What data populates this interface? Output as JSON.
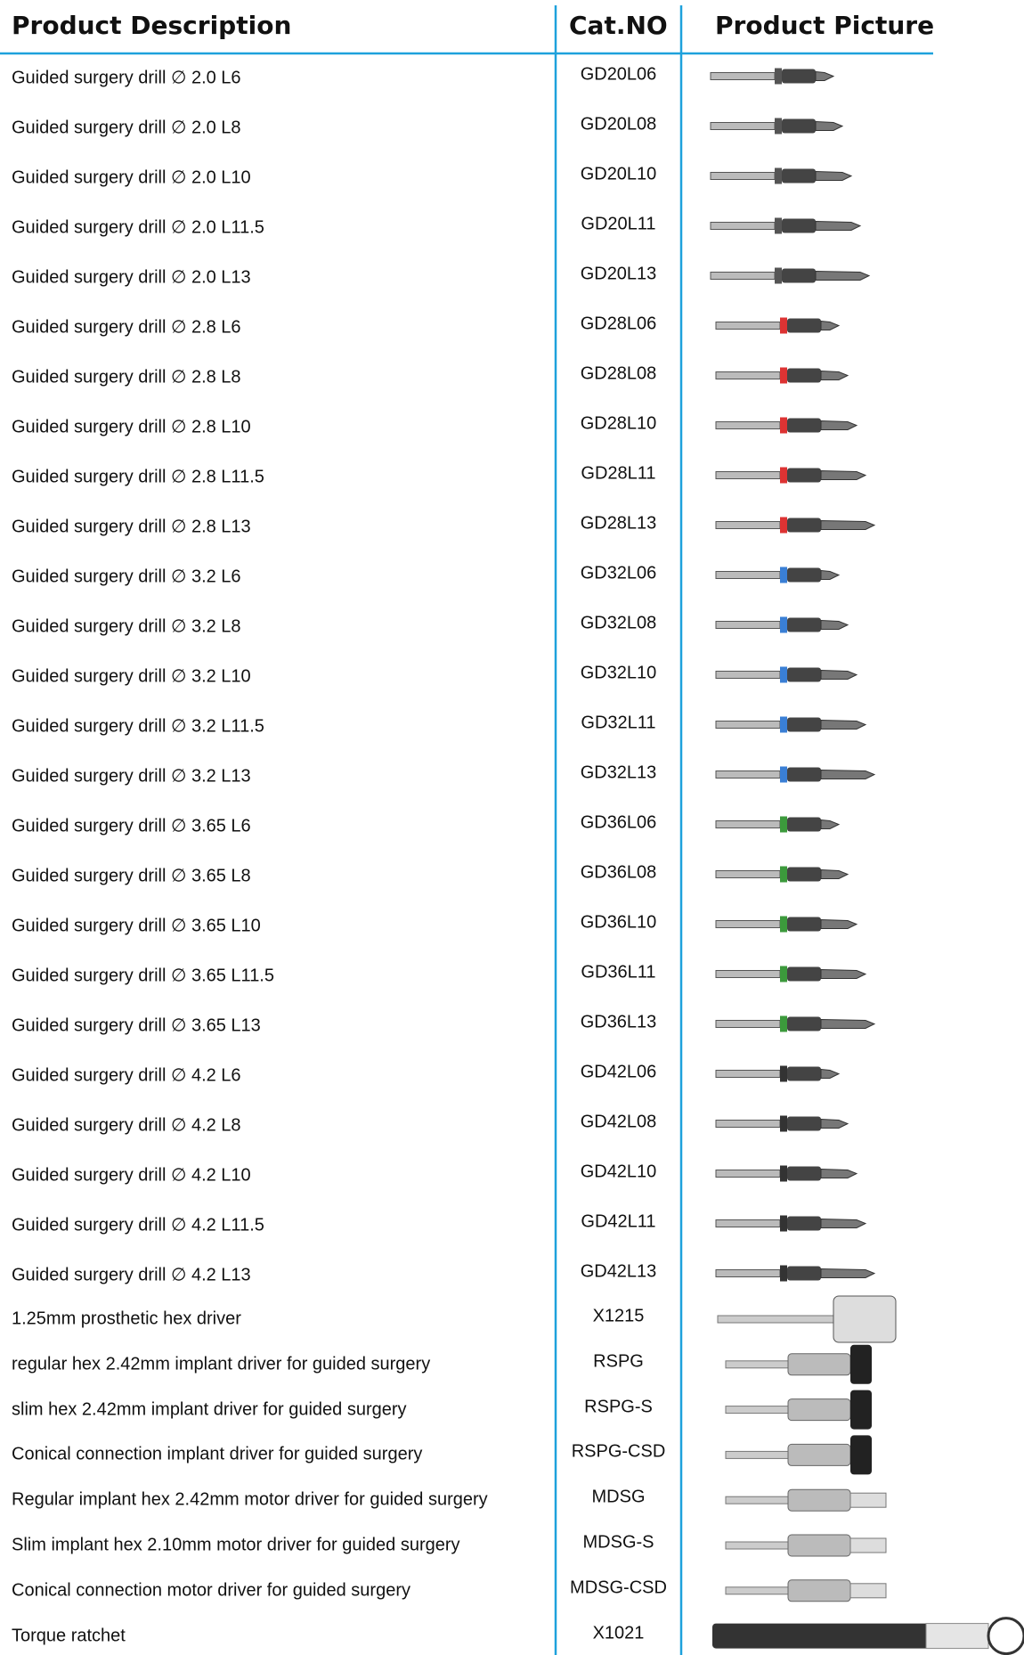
{
  "header": {
    "description": "Product Description",
    "catno": "Cat.NO",
    "picture": "Product Picture"
  },
  "rows": [
    {
      "description": "Guided surgery drill ∅ 2.0 L6",
      "cat": "GD20L06"
    },
    {
      "description": "Guided surgery drill ∅ 2.0 L8",
      "cat": "GD20L08"
    },
    {
      "description": "Guided surgery drill ∅ 2.0 L10",
      "cat": "GD20L10"
    },
    {
      "description": "Guided surgery drill ∅ 2.0 L11.5",
      "cat": "GD20L11"
    },
    {
      "description": "Guided surgery drill ∅ 2.0 L13",
      "cat": "GD20L13"
    },
    {
      "description": "Guided surgery drill ∅ 2.8 L6",
      "cat": "GD28L06"
    },
    {
      "description": "Guided surgery drill ∅ 2.8 L8",
      "cat": "GD28L08"
    },
    {
      "description": "Guided surgery drill ∅ 2.8 L10",
      "cat": "GD28L10"
    },
    {
      "description": "Guided surgery drill ∅ 2.8 L11.5",
      "cat": "GD28L11"
    },
    {
      "description": "Guided surgery drill ∅ 2.8 L13",
      "cat": "GD28L13"
    },
    {
      "description": "Guided surgery drill ∅ 3.2 L6",
      "cat": "GD32L06"
    },
    {
      "description": "Guided surgery drill ∅ 3.2 L8",
      "cat": "GD32L08"
    },
    {
      "description": "Guided surgery drill ∅ 3.2 L10",
      "cat": "GD32L10"
    },
    {
      "description": "Guided surgery drill ∅ 3.2 L11.5",
      "cat": "GD32L11"
    },
    {
      "description": "Guided surgery drill ∅ 3.2 L13",
      "cat": "GD32L13"
    },
    {
      "description": "Guided surgery drill ∅ 3.65 L6",
      "cat": "GD36L06"
    },
    {
      "description": "Guided surgery drill ∅ 3.65 L8",
      "cat": "GD36L08"
    },
    {
      "description": "Guided surgery drill ∅ 3.65 L10",
      "cat": "GD36L10"
    },
    {
      "description": "Guided surgery drill ∅ 3.65 L11.5",
      "cat": "GD36L11"
    },
    {
      "description": "Guided surgery drill ∅ 3.65 L13",
      "cat": "GD36L13"
    },
    {
      "description": "Guided surgery drill ∅ 4.2 L6",
      "cat": "GD42L06"
    },
    {
      "description": "Guided surgery drill ∅ 4.2 L8",
      "cat": "GD42L08"
    },
    {
      "description": "Guided surgery drill ∅ 4.2 L10",
      "cat": "GD42L10"
    },
    {
      "description": "Guided surgery drill ∅ 4.2 L11.5",
      "cat": "GD42L11"
    },
    {
      "description": "Guided surgery drill ∅ 4.2 L13",
      "cat": "GD42L13"
    },
    {
      "description": "1.25mm prosthetic hex driver",
      "cat": "X1215"
    },
    {
      "description": "regular hex 2.42mm implant driver for guided surgery",
      "cat": "RSPG"
    },
    {
      "description": "slim hex 2.42mm implant driver for guided surgery",
      "cat": "RSPG-S"
    },
    {
      "description": "Conical connection implant driver for guided surgery",
      "cat": "RSPG-CSD"
    },
    {
      "description": "Regular implant hex 2.42mm motor driver for guided surgery",
      "cat": "MDSG"
    },
    {
      "description": "Slim implant hex 2.10mm motor driver for guided surgery",
      "cat": "MDSG-S"
    },
    {
      "description": "Conical connection motor driver for guided surgery",
      "cat": "MDSG-CSD"
    },
    {
      "description": "Torque ratchet",
      "cat": "X1021"
    }
  ]
}
